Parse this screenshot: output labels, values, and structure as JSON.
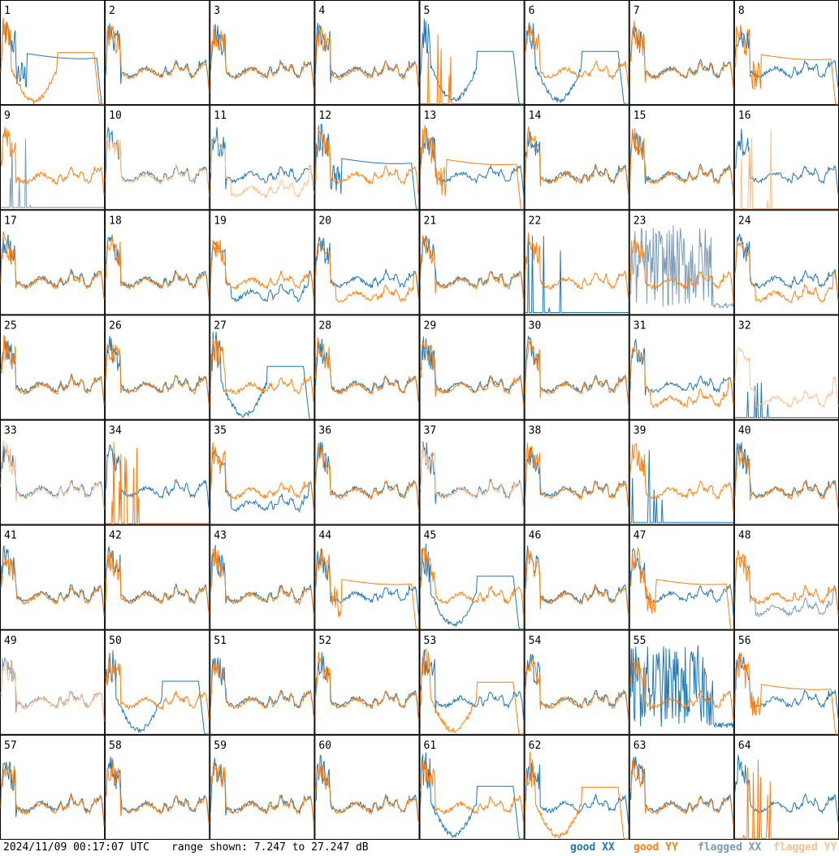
{
  "chart_data": {
    "type": "line",
    "panels": [
      "1",
      "2",
      "3",
      "4",
      "5",
      "6",
      "7",
      "8",
      "9",
      "10",
      "11",
      "12",
      "13",
      "14",
      "15",
      "16",
      "17",
      "18",
      "19",
      "20",
      "21",
      "22",
      "23",
      "24",
      "25",
      "26",
      "27",
      "28",
      "29",
      "30",
      "31",
      "32",
      "33",
      "34",
      "35",
      "36",
      "37",
      "38",
      "39",
      "40",
      "41",
      "42",
      "43",
      "44",
      "45",
      "46",
      "47",
      "48",
      "49",
      "50",
      "51",
      "52",
      "53",
      "54",
      "55",
      "56",
      "57",
      "58",
      "59",
      "60",
      "61",
      "62",
      "63",
      "64"
    ],
    "grid": {
      "rows": 8,
      "cols": 8
    },
    "range_db": [
      7.247,
      27.247
    ],
    "legend": {
      "position": "bottom-right"
    },
    "series": [
      {
        "name": "good XX",
        "color": "#1f77b4"
      },
      {
        "name": "good YY",
        "color": "#ff7f0e"
      },
      {
        "name": "flagged XX",
        "color": "#7b9bb8"
      },
      {
        "name": "flagged YY",
        "color": "#ffbf8c"
      }
    ],
    "panel_series": [
      {
        "xx": "slump",
        "yy": "dip",
        "xf": 0,
        "yf": 0
      },
      {
        "xx": "normal",
        "yy": "normal",
        "xf": 0,
        "yf": 0
      },
      {
        "xx": "normal",
        "yy": "normal",
        "xf": 0,
        "yf": 0
      },
      {
        "xx": "normal",
        "yy": "normal",
        "xf": 0,
        "yf": 0
      },
      {
        "xx": "dip",
        "yy": "dead",
        "xf": 0,
        "yf": 0
      },
      {
        "xx": "dip",
        "yy": "normal",
        "xf": 0,
        "yf": 0
      },
      {
        "xx": "normal",
        "yy": "normal",
        "xf": 0,
        "yf": 0
      },
      {
        "xx": "normal",
        "yy": "slump",
        "xf": 0,
        "yf": 0
      },
      {
        "xx": "dead",
        "yy": "normal",
        "xf": 1,
        "yf": 0
      },
      {
        "xx": "normal",
        "yy": "normal",
        "xf": 0,
        "yf": 1
      },
      {
        "xx": "normal",
        "yy": "low",
        "xf": 0,
        "yf": 1
      },
      {
        "xx": "slump",
        "yy": "normal",
        "xf": 0,
        "yf": 0
      },
      {
        "xx": "normal",
        "yy": "slump",
        "xf": 0,
        "yf": 0
      },
      {
        "xx": "normal",
        "yy": "normal",
        "xf": 0,
        "yf": 0
      },
      {
        "xx": "normal",
        "yy": "normal",
        "xf": 0,
        "yf": 0
      },
      {
        "xx": "normal",
        "yy": "dead",
        "xf": 0,
        "yf": 1
      },
      {
        "xx": "normal",
        "yy": "normal",
        "xf": 0,
        "yf": 0
      },
      {
        "xx": "normal",
        "yy": "normal",
        "xf": 0,
        "yf": 0
      },
      {
        "xx": "low",
        "yy": "normal",
        "xf": 0,
        "yf": 0
      },
      {
        "xx": "normal",
        "yy": "low",
        "xf": 0,
        "yf": 0
      },
      {
        "xx": "normal",
        "yy": "normal",
        "xf": 0,
        "yf": 0
      },
      {
        "xx": "dead",
        "yy": "normal",
        "xf": 0,
        "yf": 0
      },
      {
        "xx": "noisy",
        "yy": "normal",
        "xf": 1,
        "yf": 0
      },
      {
        "xx": "normal",
        "yy": "low",
        "xf": 0,
        "yf": 0
      },
      {
        "xx": "normal",
        "yy": "normal",
        "xf": 0,
        "yf": 0
      },
      {
        "xx": "normal",
        "yy": "normal",
        "xf": 0,
        "yf": 0
      },
      {
        "xx": "dip",
        "yy": "normal",
        "xf": 0,
        "yf": 0
      },
      {
        "xx": "normal",
        "yy": "normal",
        "xf": 0,
        "yf": 0
      },
      {
        "xx": "normal",
        "yy": "normal",
        "xf": 0,
        "yf": 0
      },
      {
        "xx": "normal",
        "yy": "normal",
        "xf": 0,
        "yf": 0
      },
      {
        "xx": "normal",
        "yy": "low",
        "xf": 0,
        "yf": 0
      },
      {
        "xx": "dead",
        "yy": "low",
        "xf": 0,
        "yf": 1
      },
      {
        "xx": "normal",
        "yy": "normal",
        "xf": 0,
        "yf": 1
      },
      {
        "xx": "normal",
        "yy": "dead",
        "xf": 0,
        "yf": 0
      },
      {
        "xx": "low",
        "yy": "normal",
        "xf": 0,
        "yf": 0
      },
      {
        "xx": "normal",
        "yy": "normal",
        "xf": 0,
        "yf": 0
      },
      {
        "xx": "normal",
        "yy": "normal",
        "xf": 0,
        "yf": 1
      },
      {
        "xx": "normal",
        "yy": "normal",
        "xf": 0,
        "yf": 0
      },
      {
        "xx": "dead",
        "yy": "normal",
        "xf": 0,
        "yf": 0
      },
      {
        "xx": "normal",
        "yy": "normal",
        "xf": 0,
        "yf": 0
      },
      {
        "xx": "normal",
        "yy": "normal",
        "xf": 0,
        "yf": 0
      },
      {
        "xx": "normal",
        "yy": "normal",
        "xf": 0,
        "yf": 0
      },
      {
        "xx": "normal",
        "yy": "normal",
        "xf": 0,
        "yf": 0
      },
      {
        "xx": "normal",
        "yy": "slump",
        "xf": 0,
        "yf": 0
      },
      {
        "xx": "dip",
        "yy": "normal",
        "xf": 0,
        "yf": 0
      },
      {
        "xx": "normal",
        "yy": "normal",
        "xf": 0,
        "yf": 0
      },
      {
        "xx": "normal",
        "yy": "slump",
        "xf": 0,
        "yf": 0
      },
      {
        "xx": "low",
        "yy": "normal",
        "xf": 1,
        "yf": 0
      },
      {
        "xx": "normal",
        "yy": "normal",
        "xf": 1,
        "yf": 1
      },
      {
        "xx": "dip",
        "yy": "normal",
        "xf": 0,
        "yf": 0
      },
      {
        "xx": "normal",
        "yy": "normal",
        "xf": 0,
        "yf": 0
      },
      {
        "xx": "normal",
        "yy": "normal",
        "xf": 0,
        "yf": 0
      },
      {
        "xx": "normal",
        "yy": "dip",
        "xf": 0,
        "yf": 0
      },
      {
        "xx": "normal",
        "yy": "normal",
        "xf": 0,
        "yf": 0
      },
      {
        "xx": "noisy",
        "yy": "normal",
        "xf": 0,
        "yf": 0
      },
      {
        "xx": "normal",
        "yy": "slump",
        "xf": 0,
        "yf": 0
      },
      {
        "xx": "normal",
        "yy": "normal",
        "xf": 0,
        "yf": 0
      },
      {
        "xx": "normal",
        "yy": "normal",
        "xf": 0,
        "yf": 0
      },
      {
        "xx": "normal",
        "yy": "normal",
        "xf": 0,
        "yf": 0
      },
      {
        "xx": "normal",
        "yy": "normal",
        "xf": 0,
        "yf": 0
      },
      {
        "xx": "dip",
        "yy": "normal",
        "xf": 0,
        "yf": 0
      },
      {
        "xx": "normal",
        "yy": "dip",
        "xf": 0,
        "yf": 0
      },
      {
        "xx": "normal",
        "yy": "normal",
        "xf": 0,
        "yf": 0
      },
      {
        "xx": "normal",
        "yy": "dead",
        "xf": 0,
        "yf": 0
      }
    ]
  },
  "footer": {
    "timestamp": "2024/11/09 00:17:07 UTC",
    "range_text": "range shown: 7.247 to 27.247 dB",
    "legend_good_xx": "good XX",
    "legend_good_yy": "good YY",
    "legend_flagged_xx": "flagged XX",
    "legend_flagged_yy": "flagged YY"
  }
}
